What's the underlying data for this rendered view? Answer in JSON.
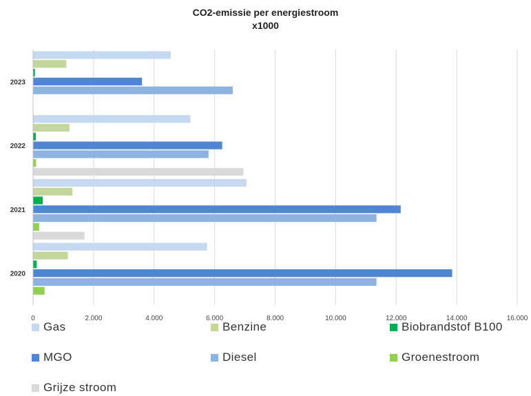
{
  "chart_data": {
    "type": "bar",
    "orientation": "horizontal",
    "title": [
      "CO2-emissie per energiestroom",
      "x1000"
    ],
    "categories": [
      "2023",
      "2022",
      "2021",
      "2020"
    ],
    "xlim": [
      0,
      16000
    ],
    "xticks": [
      {
        "value": 0,
        "label": "0"
      },
      {
        "value": 2000,
        "label": "2.000"
      },
      {
        "value": 4000,
        "label": "4.000"
      },
      {
        "value": 6000,
        "label": "6.000"
      },
      {
        "value": 8000,
        "label": "8.000"
      },
      {
        "value": 10000,
        "label": "10.000"
      },
      {
        "value": 12000,
        "label": "12.000"
      },
      {
        "value": 14000,
        "label": "14.000"
      },
      {
        "value": 16000,
        "label": "16.000"
      }
    ],
    "grid": "vertical",
    "legend": "bottom",
    "series": [
      {
        "name": "Gas",
        "color": "#c6d9f0",
        "values": [
          4550,
          5200,
          7050,
          5750
        ]
      },
      {
        "name": "Benzine",
        "color": "#c3d69b",
        "values": [
          1100,
          1200,
          1300,
          1150
        ]
      },
      {
        "name": "Biobrandstof B100",
        "color": "#00b050",
        "values": [
          60,
          90,
          320,
          120
        ]
      },
      {
        "name": "MGO",
        "color": "#4f86d4",
        "values": [
          3600,
          6250,
          12150,
          13850
        ]
      },
      {
        "name": "Diesel",
        "color": "#8db3e2",
        "values": [
          6600,
          5800,
          11350,
          11350
        ]
      },
      {
        "name": "Groenestroom",
        "color": "#92d050",
        "values": [
          0,
          100,
          200,
          380
        ]
      },
      {
        "name": "Grijze stroom",
        "color": "#d9d9d9",
        "values": [
          0,
          6950,
          1700,
          0
        ]
      }
    ]
  }
}
